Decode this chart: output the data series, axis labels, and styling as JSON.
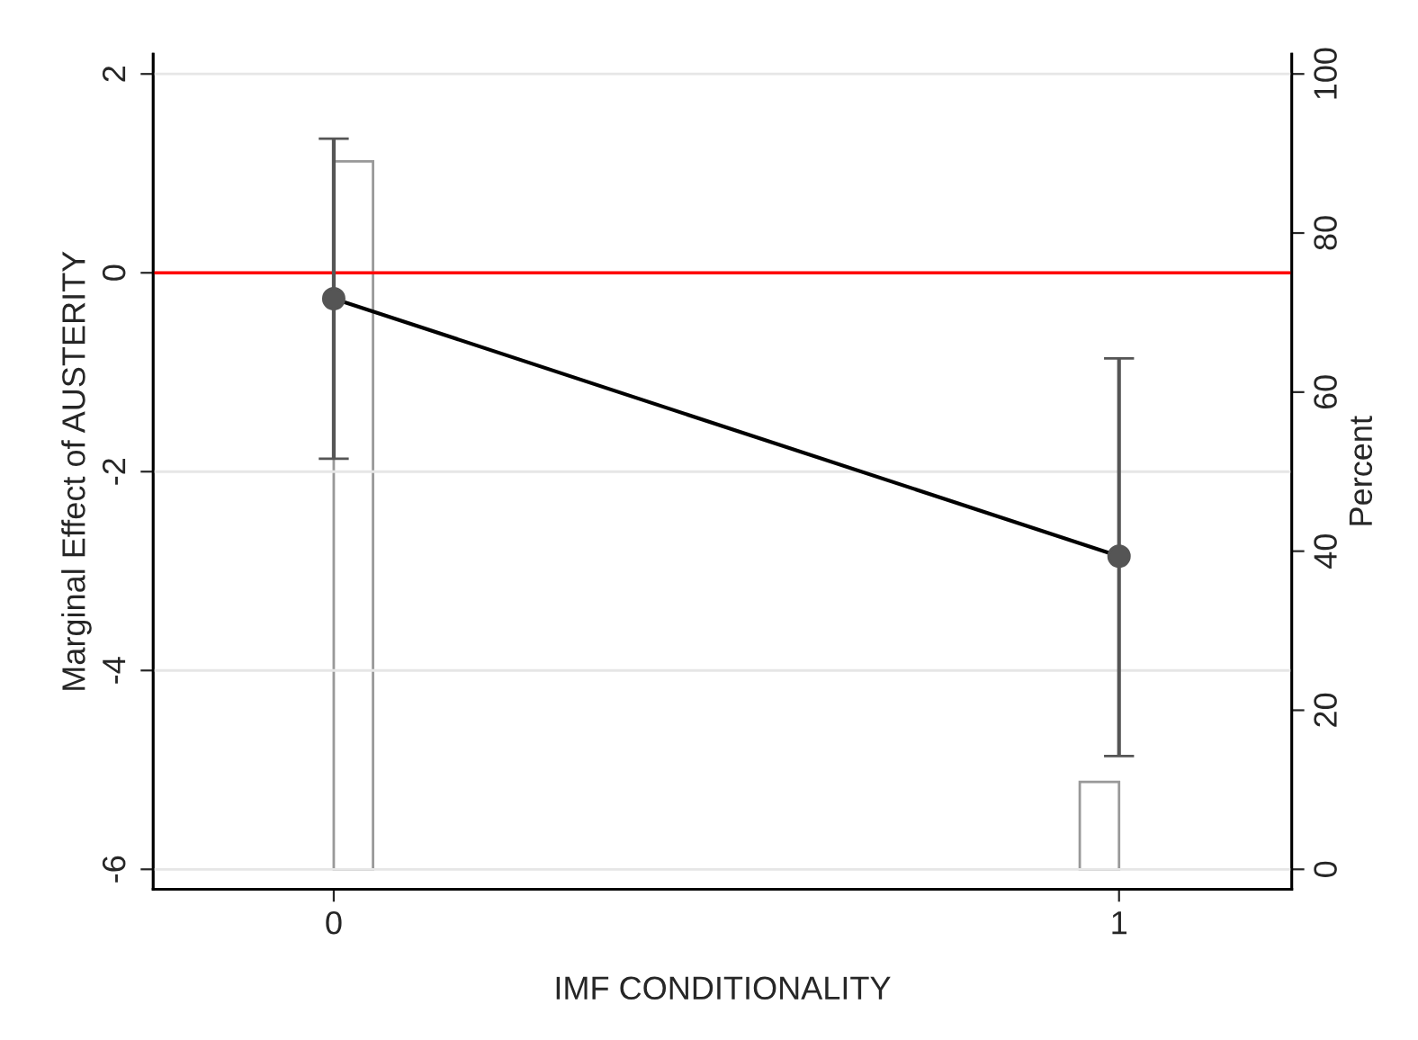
{
  "chart_data": {
    "type": "line",
    "xlabel": "IMF CONDITIONALITY",
    "ylabel": "Marginal Effect of AUSTERITY",
    "y2label": "Percent",
    "x": [
      0,
      1
    ],
    "series": [
      {
        "type": "histogram",
        "axis": "y2",
        "color": "#999999",
        "bins": [
          0,
          0.05,
          0.95,
          1
        ],
        "values": [
          89,
          null,
          11
        ]
      },
      {
        "color": "#555555",
        "values": [
          -0.26,
          -2.85
        ],
        "errors": [
          [
            -1.87,
            1.35
          ],
          [
            -4.86,
            -0.86
          ]
        ],
        "marker": "circle"
      }
    ],
    "xlim": [
      -0.23,
      1.22
    ],
    "xticks": [
      0,
      1
    ],
    "ylim": [
      -6.2,
      2.2
    ],
    "yticks": [
      -6,
      -4,
      -2,
      0,
      2
    ],
    "y2lim": [
      -2.5,
      102.5
    ],
    "y2ticks": [
      0,
      20,
      40,
      60,
      80,
      100
    ],
    "ref_lines": [
      {
        "axis": "y",
        "value": 0,
        "color": "#ff0000"
      }
    ],
    "grid": "y",
    "legend": false
  }
}
